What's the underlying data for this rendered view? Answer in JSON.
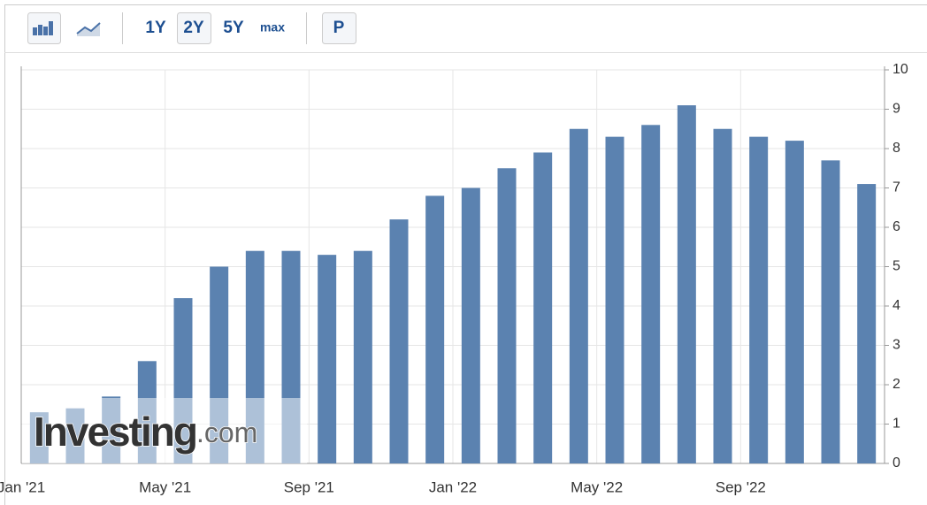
{
  "toolbar": {
    "buttons": [
      "1Y",
      "2Y",
      "5Y",
      "max",
      "P"
    ],
    "selected": "2Y"
  },
  "watermark": {
    "brand": "Investing",
    "suffix": ".com"
  },
  "chart_data": {
    "type": "bar",
    "categories": [
      "Jan '21",
      null,
      null,
      null,
      "May '21",
      null,
      null,
      null,
      "Sep '21",
      null,
      null,
      null,
      "Jan '22",
      null,
      null,
      null,
      "May '22",
      null,
      null,
      null,
      "Sep '22",
      null,
      null,
      null
    ],
    "values": [
      1.3,
      1.4,
      1.7,
      2.6,
      4.2,
      5.0,
      5.4,
      5.4,
      5.3,
      5.4,
      6.2,
      6.8,
      7.0,
      7.5,
      7.9,
      8.5,
      8.3,
      8.6,
      9.1,
      8.5,
      8.3,
      8.2,
      7.7,
      7.1
    ],
    "color": "#5b82b0",
    "ylim": [
      0,
      10
    ],
    "yticks": [
      0,
      1,
      2,
      3,
      4,
      5,
      6,
      7,
      8,
      9,
      10
    ],
    "y_axis_side": "right",
    "grid": true
  }
}
